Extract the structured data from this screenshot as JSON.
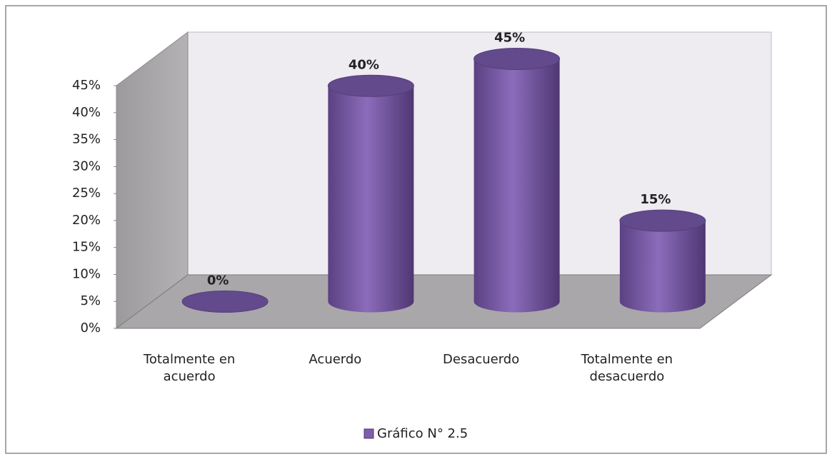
{
  "chart_data": {
    "type": "bar3d",
    "categories": [
      "Totalmente en acuerdo",
      "Acuerdo",
      "Desacuerdo",
      "Totalmente en desacuerdo"
    ],
    "series": [
      {
        "name": "Gráfico N° 2.5",
        "color": "#7d5fab",
        "values": [
          0,
          40,
          45,
          15
        ],
        "value_labels": [
          "0%",
          "40%",
          "45%",
          "15%"
        ]
      }
    ],
    "ylim": [
      0,
      45
    ],
    "yticks": [
      {
        "value": 0,
        "label": "0%"
      },
      {
        "value": 5,
        "label": "5%"
      },
      {
        "value": 10,
        "label": "10%"
      },
      {
        "value": 15,
        "label": "15%"
      },
      {
        "value": 20,
        "label": "20%"
      },
      {
        "value": 25,
        "label": "25%"
      },
      {
        "value": 30,
        "label": "30%"
      },
      {
        "value": 35,
        "label": "35%"
      },
      {
        "value": 40,
        "label": "40%"
      },
      {
        "value": 45,
        "label": "45%"
      }
    ],
    "legend": "bottom"
  }
}
